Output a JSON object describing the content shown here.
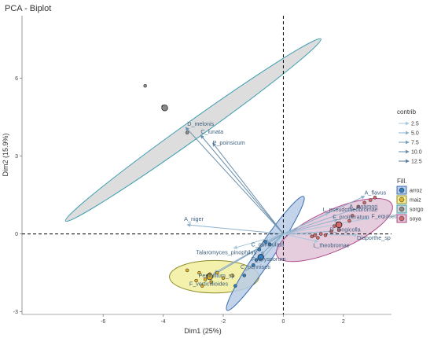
{
  "chart_data": {
    "type": "scatter",
    "title": "PCA - Biplot",
    "xlabel": "Dim1 (25%)",
    "ylabel": "Dim2 (15.9%)",
    "xlim": [
      -8.7,
      3.6
    ],
    "ylim": [
      -3.1,
      8.4
    ],
    "xticks": [
      -6,
      -4,
      -2,
      0,
      2
    ],
    "yticks": [
      -3,
      0,
      3,
      6
    ],
    "grid": false,
    "reference_lines": {
      "x": 0,
      "y": 0
    },
    "contrib_legend": {
      "title": "contrib",
      "entries": [
        "2.5",
        "5.0",
        "7.5",
        "10.0",
        "12.5"
      ],
      "colors": [
        "#a9c7dc",
        "#8fb2cc",
        "#7a9fbb",
        "#6b8fac",
        "#5a7e9c"
      ]
    },
    "fill_legend": {
      "title": "Fill.",
      "entries": [
        "arroz",
        "maiz",
        "sorgo",
        "soya"
      ],
      "point_colors": [
        "#2f7fc1",
        "#e3b42a",
        "#8a8a8a",
        "#d46a6a"
      ],
      "ellipse_colors": [
        "#b7cbe6",
        "#f2ee9e",
        "#d7d7d7",
        "#e2c4d8"
      ],
      "border_colors": [
        "#3a6fb0",
        "#8c8c2a",
        "#3a9db0",
        "#b04a8a"
      ]
    },
    "groups": [
      {
        "name": "sorgo",
        "ellipse": {
          "cx": -3.0,
          "cy": 4.0,
          "rx": 5.6,
          "ry": 0.32,
          "angle_deg": -35.5,
          "fill": "#d7d7d7",
          "stroke": "#3a9db0"
        },
        "points": [
          [
            -4.6,
            5.7
          ],
          [
            -4.0,
            4.9
          ],
          [
            -3.2,
            3.9
          ],
          [
            -3.95,
            4.85
          ]
        ],
        "centroid": [
          -3.95,
          4.85
        ],
        "color": "#8a8a8a"
      },
      {
        "name": "maiz",
        "ellipse": {
          "cx": -2.3,
          "cy": -1.65,
          "rx": 1.6,
          "ry": 0.58,
          "angle_deg": 0,
          "fill": "#f2ee9e",
          "stroke": "#8c8c2a"
        },
        "points": [
          [
            -3.2,
            -1.4
          ],
          [
            -2.9,
            -1.8
          ],
          [
            -2.7,
            -2.0
          ],
          [
            -2.6,
            -1.75
          ],
          [
            -2.5,
            -1.6
          ],
          [
            -2.4,
            -1.85
          ],
          [
            -2.45,
            -1.55
          ],
          [
            -2.2,
            -1.5
          ],
          [
            -2.0,
            -1.7
          ],
          [
            -1.7,
            -1.6
          ],
          [
            -2.8,
            -1.5
          ]
        ],
        "centroid": [
          -2.45,
          -1.65
        ],
        "color": "#e3b42a"
      },
      {
        "name": "arroz",
        "ellipse": {
          "cx": -0.6,
          "cy": -0.75,
          "rx": 2.45,
          "ry": 0.3,
          "angle_deg": -56,
          "fill": "#b7cbe6",
          "stroke": "#3a6fb0"
        },
        "points": [
          [
            -1.0,
            -1.2
          ],
          [
            -0.8,
            -0.6
          ],
          [
            -0.6,
            -0.3
          ],
          [
            -0.45,
            -0.4
          ],
          [
            -1.3,
            -1.6
          ],
          [
            -1.6,
            -2.0
          ],
          [
            -0.9,
            -1.0
          ]
        ],
        "centroid": [
          -0.75,
          -0.9
        ],
        "color": "#2f7fc1"
      },
      {
        "name": "soya",
        "ellipse": {
          "cx": 1.7,
          "cy": 0.15,
          "rx": 2.25,
          "ry": 0.72,
          "angle_deg": -24,
          "fill": "#e2c4d8",
          "stroke": "#b04a8a"
        },
        "points": [
          [
            0.95,
            -0.1
          ],
          [
            1.05,
            -0.05
          ],
          [
            1.15,
            -0.15
          ],
          [
            1.25,
            0.0
          ],
          [
            1.4,
            -0.05
          ],
          [
            1.6,
            0.1
          ],
          [
            1.7,
            0.3
          ],
          [
            1.8,
            0.4
          ],
          [
            1.9,
            0.35
          ],
          [
            1.85,
            0.15
          ],
          [
            2.2,
            0.5
          ],
          [
            2.5,
            1.05
          ],
          [
            2.7,
            1.2
          ],
          [
            2.9,
            1.3
          ],
          [
            3.05,
            1.4
          ],
          [
            2.3,
            0.7
          ]
        ],
        "centroid": [
          1.85,
          0.35
        ],
        "color": "#d46a6a"
      }
    ],
    "variables": [
      {
        "name": "D_melonis",
        "x": -3.25,
        "y": 4.1,
        "contrib": 10.0
      },
      {
        "name": "C_lunata",
        "x": -2.75,
        "y": 3.8,
        "contrib": 10.0
      },
      {
        "name": "P_poinsicum",
        "x": -2.35,
        "y": 3.5,
        "contrib": 10.0
      },
      {
        "name": "A_niger",
        "x": -3.2,
        "y": 0.35,
        "contrib": 5.0
      },
      {
        "name": "Talaromyces_pinophilus",
        "x": -1.65,
        "y": -0.55,
        "contrib": 2.5
      },
      {
        "name": "Penicillium_sp",
        "x": -2.3,
        "y": -1.5,
        "contrib": 5.0
      },
      {
        "name": "F_verticillioides",
        "x": -2.5,
        "y": -1.7,
        "contrib": 7.5
      },
      {
        "name": "C_geniculata",
        "x": -0.6,
        "y": -0.3,
        "contrib": 5.0
      },
      {
        "name": "F_oxysporum",
        "x": -0.75,
        "y": -0.8,
        "contrib": 7.5
      },
      {
        "name": "C_penniseti",
        "x": -0.8,
        "y": -1.1,
        "contrib": 5.0
      },
      {
        "name": "L_pseudotheobromae",
        "x": 1.5,
        "y": 0.8,
        "contrib": 2.5
      },
      {
        "name": "A_flavus",
        "x": 2.7,
        "y": 1.45,
        "contrib": 5.0
      },
      {
        "name": "A_awamori",
        "x": 2.35,
        "y": 0.95,
        "contrib": 5.0
      },
      {
        "name": "F_proliferatum",
        "x": 1.8,
        "y": 0.55,
        "contrib": 5.0
      },
      {
        "name": "F_equiseti",
        "x": 2.85,
        "y": 0.6,
        "contrib": 2.5
      },
      {
        "name": "D_longicolla",
        "x": 1.65,
        "y": 0.1,
        "contrib": 5.0
      },
      {
        "name": "L_theobromae",
        "x": 1.15,
        "y": -0.3,
        "contrib": 2.5
      },
      {
        "name": "Diaporthe_sp",
        "x": 2.45,
        "y": -0.05,
        "contrib": 2.5
      }
    ]
  }
}
